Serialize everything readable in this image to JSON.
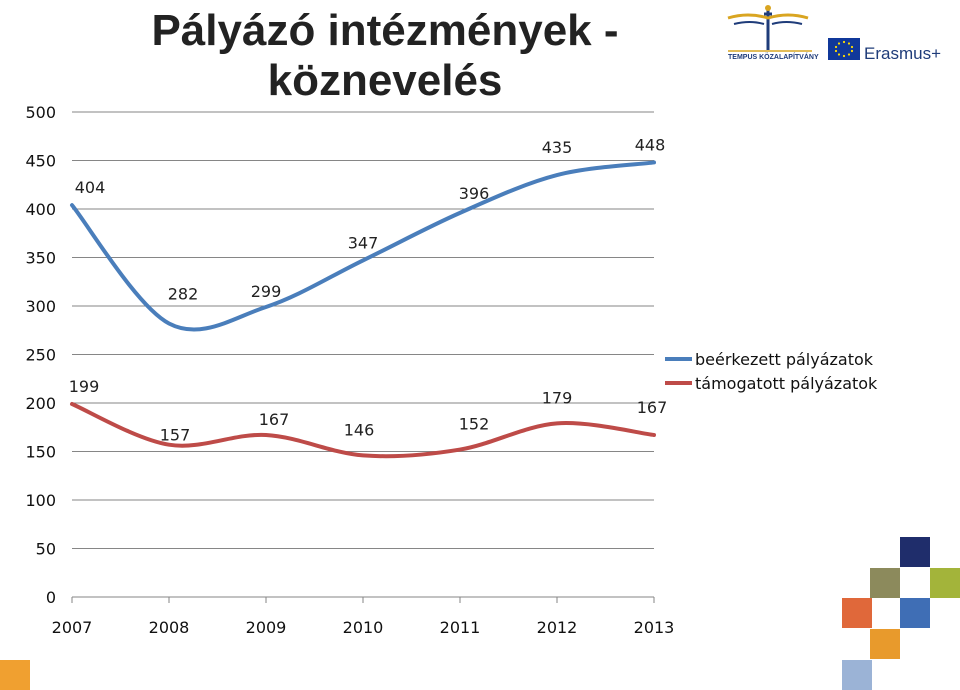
{
  "title_line1": "Pályázó intézmények -",
  "title_line2": "köznevelés",
  "logos": {
    "tempus": "TEMPUS KÖZALAPÍTVÁNY",
    "erasmus": "Erasmus+"
  },
  "chart_data": {
    "type": "line",
    "title": "Pályázó intézmények - köznevelés",
    "x": [
      2007,
      2008,
      2009,
      2010,
      2011,
      2012,
      2013
    ],
    "ylim": [
      0,
      500
    ],
    "yticks": [
      0,
      50,
      100,
      150,
      200,
      250,
      300,
      350,
      400,
      450,
      500
    ],
    "grid": true,
    "smooth": true,
    "legend_position": "right",
    "series": [
      {
        "name": "beérkezett pályázatok",
        "color": "#4a7ebb",
        "values": [
          404,
          282,
          299,
          347,
          396,
          435,
          448
        ]
      },
      {
        "name": "támogatott pályázatok",
        "color": "#be4b48",
        "values": [
          199,
          157,
          167,
          146,
          152,
          179,
          167
        ]
      }
    ]
  },
  "decor_colors": [
    "#1f2d6b",
    "#8c8a5c",
    "#a3b43a",
    "#e0683a",
    "#3f6eb5",
    "#e89a2c",
    "#9bb3d6",
    "#f0a030"
  ]
}
